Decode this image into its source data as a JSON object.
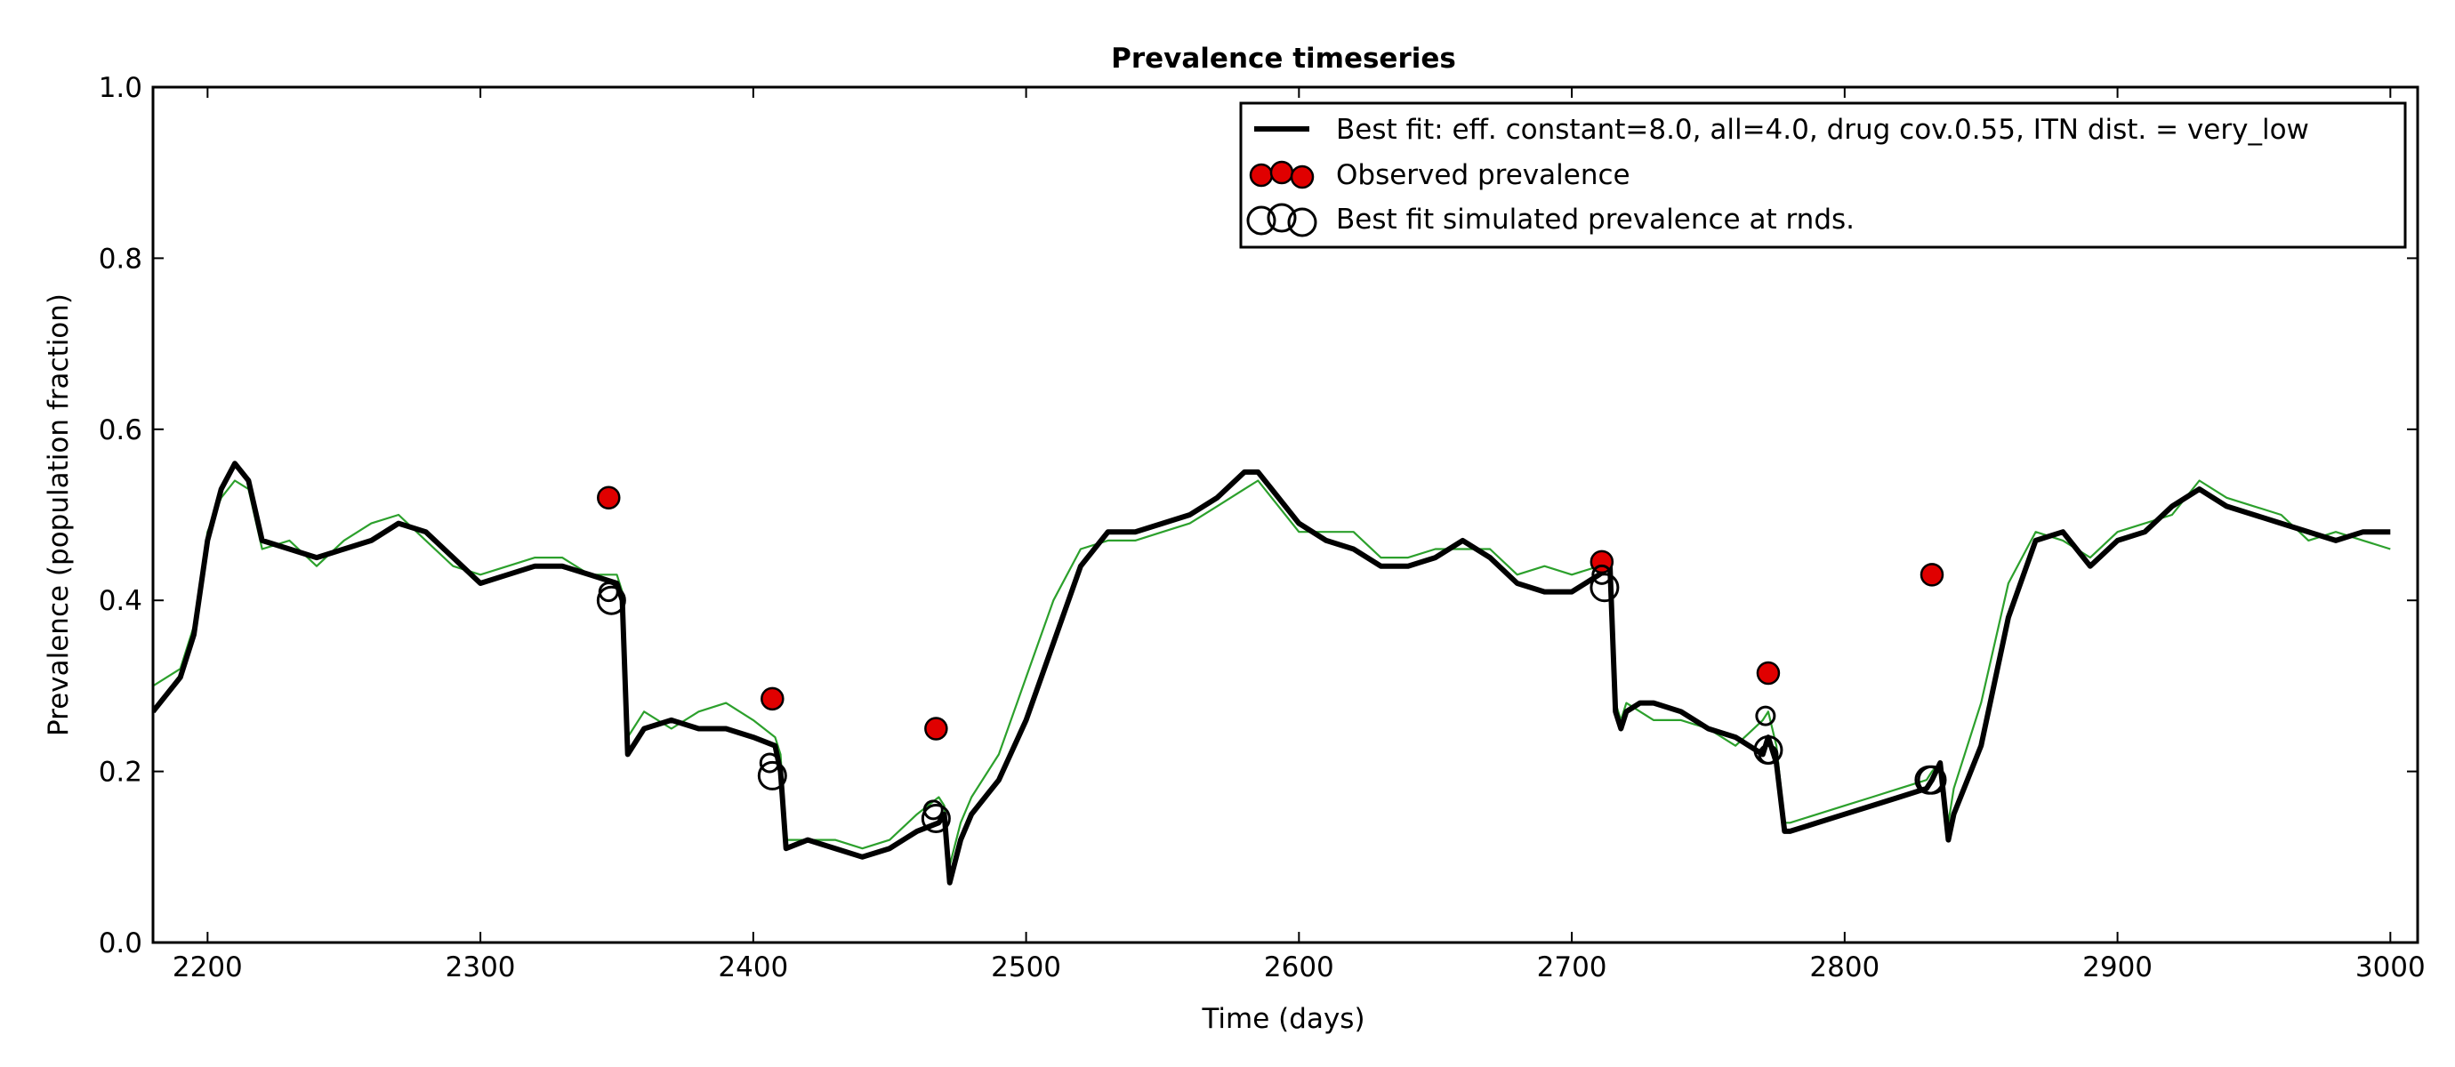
{
  "chart_data": {
    "type": "line",
    "title": "Prevalence timeseries",
    "xlabel": "Time (days)",
    "ylabel": "Prevalence (population fraction)",
    "xlim": [
      2180,
      3010
    ],
    "ylim": [
      0.0,
      1.0
    ],
    "xticks": [
      2200,
      2300,
      2400,
      2500,
      2600,
      2700,
      2800,
      2900,
      3000
    ],
    "yticks": [
      0.0,
      0.2,
      0.4,
      0.6,
      0.8,
      1.0
    ],
    "xtick_labels": [
      "2200",
      "2300",
      "2400",
      "2500",
      "2600",
      "2700",
      "2800",
      "2900",
      "3000"
    ],
    "ytick_labels": [
      "0.0",
      "0.2",
      "0.4",
      "0.6",
      "0.8",
      "1.0"
    ],
    "grid": false,
    "legend_position": "top-right",
    "legend": [
      "Best fit: eff. constant=8.0, all=4.0, drug cov.0.55, ITN dist. = very_low",
      "Observed prevalence",
      "Best fit simulated prevalence at rnds."
    ],
    "colors": {
      "best_fit": "#000000",
      "secondary": "#2ca02c",
      "observed": "#e00000"
    },
    "series": [
      {
        "name": "Best fit: eff. constant=8.0, all=4.0, drug cov.0.55, ITN dist. = very_low",
        "x": [
          2180,
          2190,
          2195,
          2200,
          2205,
          2210,
          2215,
          2220,
          2230,
          2240,
          2250,
          2260,
          2270,
          2280,
          2290,
          2300,
          2310,
          2320,
          2330,
          2340,
          2350,
          2352,
          2354,
          2360,
          2370,
          2380,
          2390,
          2400,
          2408,
          2410,
          2412,
          2420,
          2430,
          2440,
          2450,
          2460,
          2468,
          2470,
          2472,
          2476,
          2480,
          2490,
          2500,
          2510,
          2520,
          2530,
          2540,
          2550,
          2560,
          2570,
          2580,
          2585,
          2590,
          2600,
          2610,
          2620,
          2630,
          2640,
          2650,
          2660,
          2670,
          2680,
          2690,
          2700,
          2710,
          2714,
          2716,
          2718,
          2720,
          2725,
          2730,
          2740,
          2750,
          2760,
          2770,
          2772,
          2775,
          2778,
          2780,
          2790,
          2800,
          2810,
          2820,
          2830,
          2832,
          2835,
          2838,
          2840,
          2850,
          2860,
          2870,
          2880,
          2890,
          2900,
          2910,
          2920,
          2930,
          2940,
          2950,
          2960,
          2970,
          2980,
          2990,
          3000
        ],
        "y": [
          0.27,
          0.31,
          0.36,
          0.47,
          0.53,
          0.56,
          0.54,
          0.47,
          0.46,
          0.45,
          0.46,
          0.47,
          0.49,
          0.48,
          0.45,
          0.42,
          0.43,
          0.44,
          0.44,
          0.43,
          0.42,
          0.4,
          0.22,
          0.25,
          0.26,
          0.25,
          0.25,
          0.24,
          0.23,
          0.2,
          0.11,
          0.12,
          0.11,
          0.1,
          0.11,
          0.13,
          0.14,
          0.15,
          0.07,
          0.12,
          0.15,
          0.19,
          0.26,
          0.35,
          0.44,
          0.48,
          0.48,
          0.49,
          0.5,
          0.52,
          0.55,
          0.55,
          0.53,
          0.49,
          0.47,
          0.46,
          0.44,
          0.44,
          0.45,
          0.47,
          0.45,
          0.42,
          0.41,
          0.41,
          0.43,
          0.44,
          0.27,
          0.25,
          0.27,
          0.28,
          0.28,
          0.27,
          0.25,
          0.24,
          0.22,
          0.24,
          0.21,
          0.13,
          0.13,
          0.14,
          0.15,
          0.16,
          0.17,
          0.18,
          0.19,
          0.21,
          0.12,
          0.15,
          0.23,
          0.38,
          0.47,
          0.48,
          0.44,
          0.47,
          0.48,
          0.51,
          0.53,
          0.51,
          0.5,
          0.49,
          0.48,
          0.47,
          0.48,
          0.48
        ]
      },
      {
        "x": [
          2180,
          2190,
          2195,
          2200,
          2205,
          2210,
          2215,
          2220,
          2230,
          2240,
          2250,
          2260,
          2270,
          2280,
          2290,
          2300,
          2310,
          2320,
          2330,
          2340,
          2350,
          2352,
          2354,
          2360,
          2370,
          2380,
          2390,
          2400,
          2408,
          2410,
          2412,
          2420,
          2430,
          2440,
          2450,
          2460,
          2468,
          2470,
          2472,
          2476,
          2480,
          2490,
          2500,
          2510,
          2520,
          2530,
          2540,
          2550,
          2560,
          2570,
          2580,
          2585,
          2590,
          2600,
          2610,
          2620,
          2630,
          2640,
          2650,
          2660,
          2670,
          2680,
          2690,
          2700,
          2710,
          2714,
          2716,
          2718,
          2720,
          2725,
          2730,
          2740,
          2750,
          2760,
          2770,
          2772,
          2775,
          2778,
          2780,
          2790,
          2800,
          2810,
          2820,
          2830,
          2832,
          2835,
          2838,
          2840,
          2850,
          2860,
          2870,
          2880,
          2890,
          2900,
          2910,
          2920,
          2930,
          2940,
          2950,
          2960,
          2970,
          2980,
          2990,
          3000
        ],
        "y": [
          0.3,
          0.32,
          0.37,
          0.48,
          0.52,
          0.54,
          0.53,
          0.46,
          0.47,
          0.44,
          0.47,
          0.49,
          0.5,
          0.47,
          0.44,
          0.43,
          0.44,
          0.45,
          0.45,
          0.43,
          0.43,
          0.41,
          0.24,
          0.27,
          0.25,
          0.27,
          0.28,
          0.26,
          0.24,
          0.22,
          0.12,
          0.12,
          0.12,
          0.11,
          0.12,
          0.15,
          0.17,
          0.16,
          0.09,
          0.14,
          0.17,
          0.22,
          0.31,
          0.4,
          0.46,
          0.47,
          0.47,
          0.48,
          0.49,
          0.51,
          0.53,
          0.54,
          0.52,
          0.48,
          0.48,
          0.48,
          0.45,
          0.45,
          0.46,
          0.46,
          0.46,
          0.43,
          0.44,
          0.43,
          0.44,
          0.45,
          0.28,
          0.26,
          0.28,
          0.27,
          0.26,
          0.26,
          0.25,
          0.23,
          0.26,
          0.27,
          0.23,
          0.14,
          0.14,
          0.15,
          0.16,
          0.17,
          0.18,
          0.19,
          0.2,
          0.21,
          0.14,
          0.18,
          0.28,
          0.42,
          0.48,
          0.47,
          0.45,
          0.48,
          0.49,
          0.5,
          0.54,
          0.52,
          0.51,
          0.5,
          0.47,
          0.48,
          0.47,
          0.46
        ]
      }
    ],
    "observed": {
      "name": "Observed prevalence",
      "x": [
        2347,
        2407,
        2467,
        2711,
        2772,
        2832
      ],
      "y": [
        0.52,
        0.285,
        0.25,
        0.445,
        0.315,
        0.43
      ]
    },
    "simulated_at_rounds": {
      "name": "Best fit simulated prevalence at rnds.",
      "x": [
        2347,
        2348,
        2406,
        2407,
        2466,
        2467,
        2711,
        2712,
        2771,
        2772,
        2772,
        2831,
        2832
      ],
      "y": [
        0.41,
        0.4,
        0.21,
        0.195,
        0.155,
        0.145,
        0.43,
        0.415,
        0.265,
        0.225,
        0.22,
        0.19,
        0.19
      ]
    }
  }
}
